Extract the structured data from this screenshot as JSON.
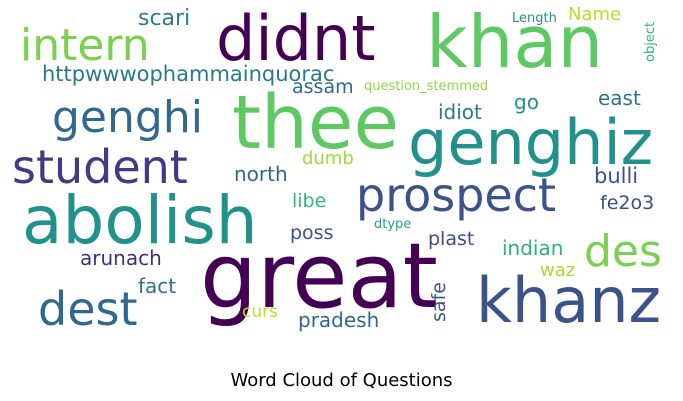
{
  "title": "Word Cloud of Questions",
  "words": [
    {
      "text": "khan",
      "color": "#5ec962"
    },
    {
      "text": "didnt",
      "color": "#440154"
    },
    {
      "text": "thee",
      "color": "#5ec962"
    },
    {
      "text": "great",
      "color": "#440154"
    },
    {
      "text": "abolish",
      "color": "#21918c"
    },
    {
      "text": "genghiz",
      "color": "#21918c"
    },
    {
      "text": "khanz",
      "color": "#3b528b"
    },
    {
      "text": "prospect",
      "color": "#3b528b"
    },
    {
      "text": "intern",
      "color": "#7ad151"
    },
    {
      "text": "student",
      "color": "#443983"
    },
    {
      "text": "genghi",
      "color": "#31688e"
    },
    {
      "text": "dest",
      "color": "#31688e"
    },
    {
      "text": "des",
      "color": "#7ad151"
    },
    {
      "text": "scari",
      "color": "#287c8e"
    },
    {
      "text": "httpwwwophammainquorac",
      "color": "#2a788e"
    },
    {
      "text": "assam",
      "color": "#31688e"
    },
    {
      "text": "question_stemmed",
      "color": "#8fd744"
    },
    {
      "text": "Name",
      "color": "#b5de2b"
    },
    {
      "text": "Length",
      "color": "#21918c"
    },
    {
      "text": "object",
      "color": "#35b779"
    },
    {
      "text": "idiot",
      "color": "#2a788e"
    },
    {
      "text": "go",
      "color": "#21918c"
    },
    {
      "text": "east",
      "color": "#2c718e"
    },
    {
      "text": "dumb",
      "color": "#a0da39"
    },
    {
      "text": "north",
      "color": "#31688e"
    },
    {
      "text": "bulli",
      "color": "#3b528b"
    },
    {
      "text": "fe2o3",
      "color": "#3e4a89"
    },
    {
      "text": "libe",
      "color": "#35b779"
    },
    {
      "text": "poss",
      "color": "#3b528b"
    },
    {
      "text": "dtype",
      "color": "#21a585"
    },
    {
      "text": "plast",
      "color": "#3e4a89"
    },
    {
      "text": "indian",
      "color": "#2db27d"
    },
    {
      "text": "arunach",
      "color": "#472d7b"
    },
    {
      "text": "waz",
      "color": "#a5db36"
    },
    {
      "text": "fact",
      "color": "#2c718e"
    },
    {
      "text": "safe",
      "color": "#39568c"
    },
    {
      "text": "curs",
      "color": "#bddf26"
    },
    {
      "text": "pradesh",
      "color": "#31688e"
    }
  ]
}
